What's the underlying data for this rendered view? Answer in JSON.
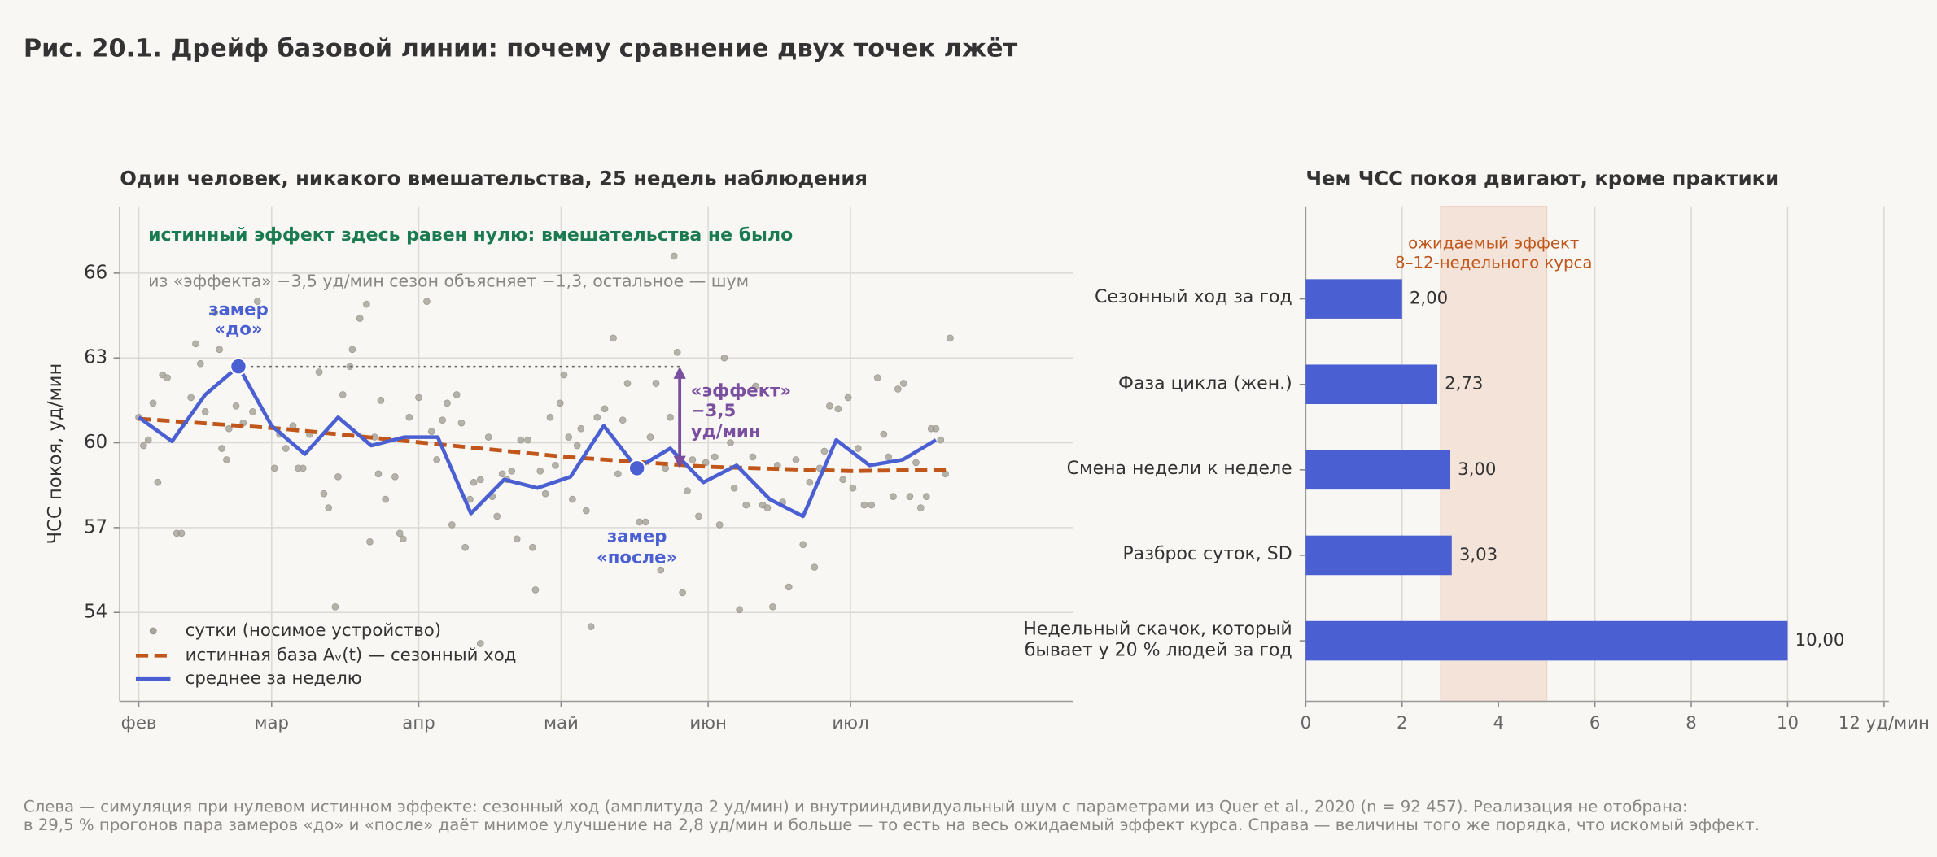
{
  "title": "Рис. 20.1. Дрейф базовой линии: почему сравнение двух точек лжёт",
  "footer": [
    "Слева — симуляция при нулевом истинном эффекте: сезонный ход (амплитуда 2 уд/мин) и внутрииндивидуальный шум с параметрами из Quer et al., 2020 (n = 92 457). Реализация не отобрана:",
    "в 29,5 % прогонов пара замеров «до» и «после» даёт мнимое улучшение на 2,8 уд/мин и больше — то есть на весь ожидаемый эффект курса. Справа — величины того же порядка, что искомый эффект."
  ],
  "chart_data": [
    {
      "type": "line",
      "title": "Один человек, никакого вмешательства, 25 недель наблюдения",
      "ylabel": "ЧСС покоя, уд/мин",
      "xlim": [
        -4,
        197
      ],
      "xticks": [
        {
          "value": 0,
          "label": "фев"
        },
        {
          "value": 28,
          "label": "мар"
        },
        {
          "value": 59,
          "label": "апр"
        },
        {
          "value": 89,
          "label": "май"
        },
        {
          "value": 120,
          "label": "июн"
        },
        {
          "value": 150,
          "label": "июл"
        }
      ],
      "ylim": [
        50.86,
        68.36
      ],
      "yticks": [
        54,
        57,
        60,
        63,
        66
      ],
      "grid": true,
      "legend": "lower left",
      "annotations": [
        "истинный эффект здесь равен нулю: вмешательства не было",
        "из «эффекта» −3,5 уд/мин сезон объясняет −1,3, остальное — шум"
      ],
      "series": [
        {
          "name": "сутки (носимое устройство)",
          "style": "scatter",
          "color": "#aaa69e",
          "x": [
            0,
            1,
            2,
            3,
            4,
            5,
            6,
            8,
            9,
            11,
            12,
            13,
            14,
            16,
            17,
            17.5,
            18.5,
            19,
            20.5,
            22,
            24,
            25,
            28.6,
            29.7,
            31,
            32.5,
            33.6,
            34.6,
            36,
            38,
            39,
            40,
            41.4,
            42,
            43,
            44.5,
            45,
            46.6,
            48,
            48.7,
            49.7,
            50.5,
            51,
            52,
            54,
            55,
            55.7,
            57,
            59,
            60.7,
            61.7,
            62.8,
            64,
            65,
            66,
            67,
            68,
            68.8,
            69.8,
            70.6,
            72,
            72,
            73.7,
            74.5,
            75.5,
            76.6,
            77.6,
            78.6,
            79.7,
            80.5,
            82,
            83,
            83.6,
            84.6,
            85.7,
            86.7,
            87.8,
            88.8,
            89.6,
            90.6,
            91.4,
            92.4,
            93.2,
            94.3,
            95.3,
            96.6,
            98.2,
            100,
            101,
            102,
            103,
            105.5,
            106.8,
            107.8,
            109,
            110,
            111,
            112,
            112.8,
            113.5,
            114.6,
            115.6,
            116.7,
            118,
            119.5,
            121.4,
            122.4,
            123.4,
            124.7,
            125.5,
            126.6,
            128,
            129.4,
            130,
            131.5,
            132.5,
            133.6,
            134.6,
            135.7,
            137,
            138.5,
            140,
            141.4,
            142.4,
            143.5,
            144.5,
            145.6,
            147.4,
            148.4,
            149.5,
            150.5,
            151.6,
            152.9,
            154.4,
            155.7,
            157,
            158,
            159,
            160,
            161.2,
            162.5,
            163.8,
            164.8,
            166,
            167,
            168,
            169,
            170,
            171
          ],
          "values": [
            60.9,
            59.9,
            60.1,
            61.4,
            58.6,
            62.4,
            62.3,
            56.8,
            56.8,
            61.6,
            63.5,
            62.8,
            61.1,
            64.6,
            63.3,
            59.8,
            59.4,
            60.5,
            61.3,
            60.7,
            61.1,
            65.0,
            59.1,
            60.3,
            59.8,
            60.6,
            59.1,
            59.1,
            60.3,
            62.5,
            58.2,
            57.7,
            54.2,
            58.8,
            61.7,
            62.7,
            63.3,
            64.4,
            64.9,
            56.5,
            60.2,
            58.9,
            61.5,
            58.0,
            58.8,
            56.8,
            56.6,
            60.9,
            61.6,
            65.0,
            60.4,
            59.4,
            60.8,
            61.4,
            57.1,
            61.7,
            60.7,
            56.3,
            58.0,
            58.6,
            58.7,
            52.9,
            60.2,
            58.1,
            57.4,
            58.9,
            58.7,
            59.0,
            56.6,
            60.1,
            60.1,
            56.3,
            54.8,
            59.0,
            58.2,
            60.9,
            59.2,
            61.4,
            62.4,
            60.2,
            58.0,
            59.9,
            60.5,
            57.6,
            53.5,
            60.9,
            61.2,
            63.7,
            58.9,
            60.8,
            62.1,
            57.2,
            57.2,
            60.2,
            62.1,
            55.5,
            59.1,
            60.9,
            66.6,
            63.2,
            54.7,
            58.3,
            59.4,
            57.4,
            59.3,
            59.5,
            57.1,
            63.0,
            60.0,
            58.4,
            54.1,
            57.8,
            59.5,
            62.0,
            57.8,
            57.7,
            54.2,
            59.2,
            57.9,
            54.9,
            59.4,
            56.4,
            58.6,
            55.6,
            59.1,
            59.7,
            61.3,
            61.2,
            58.7,
            61.6,
            58.4,
            59.8,
            57.8,
            57.8,
            62.3,
            60.3,
            59.5,
            58.1,
            61.9,
            62.1,
            58.1,
            59.3,
            57.7,
            58.1,
            60.5,
            60.5,
            60.1,
            58.9,
            63.7
          ]
        },
        {
          "name": "истинная база Aᵥ(t) — сезонный ход",
          "style": "dashed",
          "color": "#c0561a",
          "x": [
            0,
            30,
            60,
            90,
            120,
            150,
            171
          ],
          "values": [
            60.85,
            60.5,
            60.0,
            59.5,
            59.15,
            59.0,
            59.05
          ]
        },
        {
          "name": "среднее за неделю",
          "style": "solid",
          "color": "#4a5fd1",
          "x": [
            0,
            7,
            14,
            21,
            28,
            35,
            42,
            49,
            56,
            63,
            70,
            77,
            84,
            91,
            98,
            105,
            112,
            119,
            126,
            133,
            140,
            147,
            154,
            161,
            168
          ],
          "values": [
            60.9,
            60.05,
            61.7,
            62.7,
            60.6,
            59.6,
            60.9,
            59.9,
            60.2,
            60.2,
            57.5,
            58.7,
            58.4,
            58.8,
            60.6,
            59.1,
            59.8,
            58.6,
            59.2,
            58.0,
            57.4,
            60.1,
            59.2,
            59.4,
            60.1
          ]
        }
      ],
      "markers": [
        {
          "label": "замер\n«до»",
          "x": 21,
          "value": 62.7,
          "color": "#4a5fd1"
        },
        {
          "label": "замер\n«после»",
          "x": 105,
          "value": 59.1,
          "color": "#4a5fd1"
        }
      ],
      "effect": {
        "label": "«эффект»\n−3,5\nуд/мин",
        "x": 114,
        "from": 62.7,
        "to": 59.1,
        "color": "#7a4fa0"
      }
    },
    {
      "type": "bar",
      "orientation": "horizontal",
      "title": "Чем ЧСС покоя двигают, кроме практики",
      "categories": [
        "Сезонный ход за год",
        "Фаза цикла (жен.)",
        "Смена недели к неделе",
        "Разброс суток, SD",
        "Недельный скачок, который\nбывает у 20 % людей за год"
      ],
      "values": [
        2.0,
        2.73,
        3.0,
        3.03,
        10.0
      ],
      "value_labels": [
        "2,00",
        "2,73",
        "3,00",
        "3,03",
        "10,00"
      ],
      "color": "#4a5fd1",
      "xlim": [
        0,
        12.1
      ],
      "xticks": [
        0,
        2,
        4,
        6,
        8,
        10,
        {
          "value": 12,
          "label": "12 уд/мин"
        }
      ],
      "grid": true,
      "shaded_range": [
        2.8,
        5.0
      ],
      "shaded_label": "ожидаемый эффект\n8–12-недельного курса",
      "shaded_color": "#f3e3d8"
    }
  ]
}
